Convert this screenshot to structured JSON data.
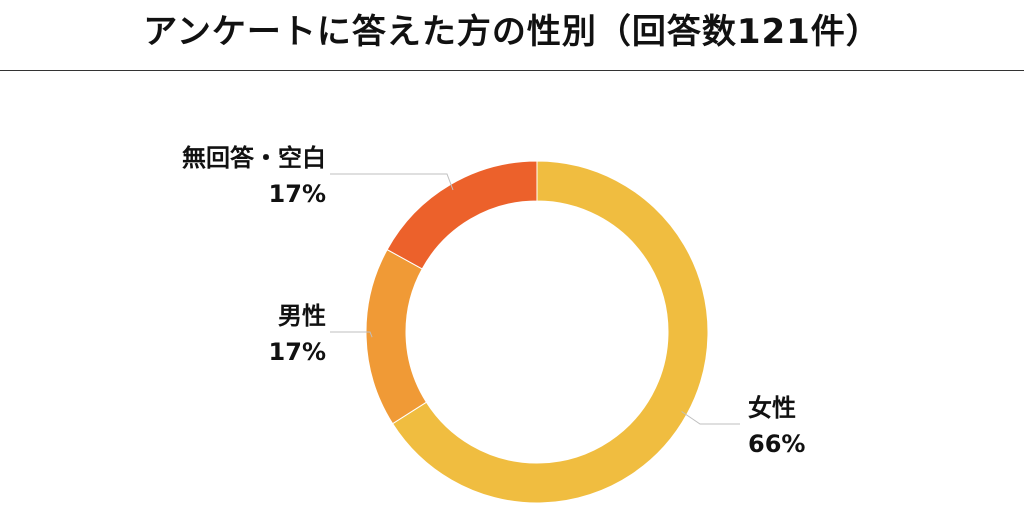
{
  "chart_data": {
    "type": "pie",
    "title": "アンケートに答えた方の性別（回答数121件）",
    "donut": true,
    "start_angle": "top",
    "direction": "clockwise",
    "categories": [
      "女性",
      "男性",
      "無回答・空白"
    ],
    "values": [
      66,
      17,
      17
    ],
    "value_labels": [
      "66%",
      "17%",
      "17%"
    ],
    "colors": [
      "#f0bd40",
      "#f09a36",
      "#ec612b"
    ],
    "legend": "none"
  }
}
